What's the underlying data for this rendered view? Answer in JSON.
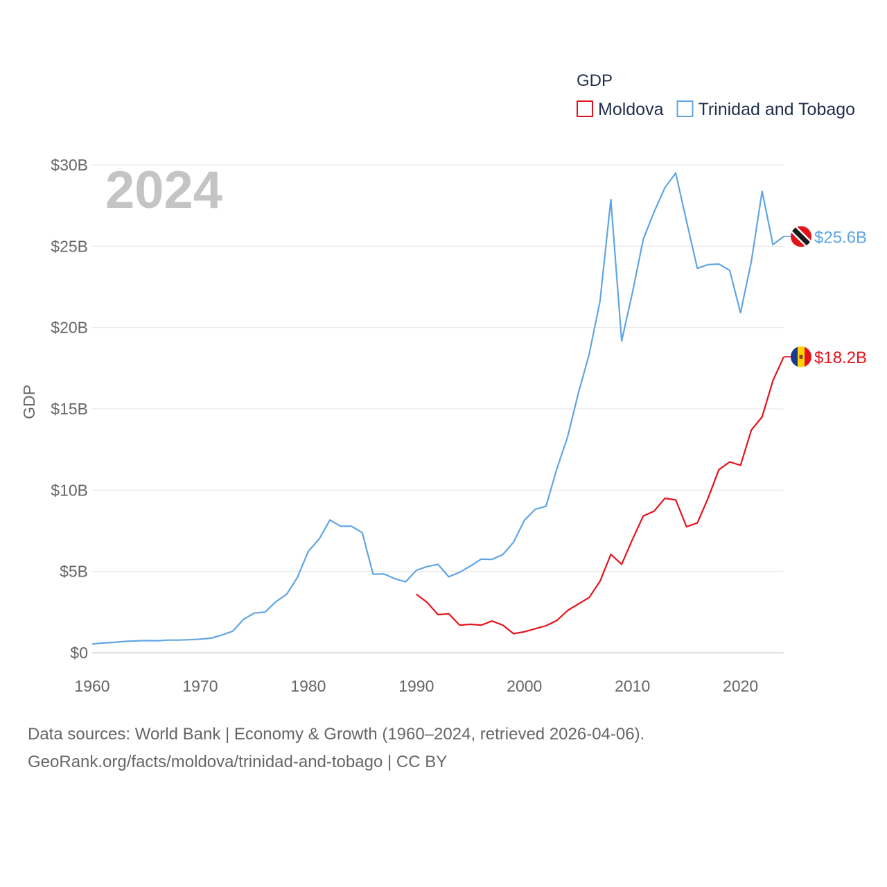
{
  "chart_data": {
    "type": "line",
    "title": "",
    "year_label": "2024",
    "legend_title": "GDP",
    "xlabel": "",
    "ylabel": "GDP",
    "xlim": [
      1960,
      2024
    ],
    "ylim": [
      0,
      30
    ],
    "y_unit": "billion USD",
    "x_ticks": [
      1960,
      1970,
      1980,
      1990,
      2000,
      2010,
      2020
    ],
    "x_tick_labels": [
      "1960",
      "1970",
      "1980",
      "1990",
      "2000",
      "2010",
      "2020"
    ],
    "y_ticks": [
      0,
      5,
      10,
      15,
      20,
      25,
      30
    ],
    "y_tick_labels": [
      "$0",
      "$5B",
      "$10B",
      "$15B",
      "$20B",
      "$25B",
      "$30B"
    ],
    "series": [
      {
        "name": "Moldova",
        "color": "#e3131b",
        "end_label": "$18.2B",
        "flag": "moldova",
        "x": [
          1990,
          1991,
          1992,
          1993,
          1994,
          1995,
          1996,
          1997,
          1998,
          1999,
          2000,
          2001,
          2002,
          2003,
          2004,
          2005,
          2006,
          2007,
          2008,
          2009,
          2010,
          2011,
          2012,
          2013,
          2014,
          2015,
          2016,
          2017,
          2018,
          2019,
          2020,
          2021,
          2022,
          2023,
          2024
        ],
        "values": [
          3.6,
          3.1,
          2.35,
          2.4,
          1.7,
          1.75,
          1.7,
          1.95,
          1.7,
          1.17,
          1.29,
          1.48,
          1.66,
          1.98,
          2.6,
          3.0,
          3.4,
          4.4,
          6.05,
          5.44,
          6.97,
          8.41,
          8.71,
          9.5,
          9.4,
          7.75,
          7.98,
          9.51,
          11.26,
          11.74,
          11.53,
          13.69,
          14.51,
          16.74,
          18.2
        ]
      },
      {
        "name": "Trinidad and Tobago",
        "color": "#5fa5e4",
        "end_label": "$25.6B",
        "flag": "trinidad-and-tobago",
        "x": [
          1960,
          1961,
          1962,
          1963,
          1964,
          1965,
          1966,
          1967,
          1968,
          1969,
          1970,
          1971,
          1972,
          1973,
          1974,
          1975,
          1976,
          1977,
          1978,
          1979,
          1980,
          1981,
          1982,
          1983,
          1984,
          1985,
          1986,
          1987,
          1988,
          1989,
          1990,
          1991,
          1992,
          1993,
          1994,
          1995,
          1996,
          1997,
          1998,
          1999,
          2000,
          2001,
          2002,
          2003,
          2004,
          2005,
          2006,
          2007,
          2008,
          2009,
          2010,
          2011,
          2012,
          2013,
          2014,
          2015,
          2016,
          2017,
          2018,
          2019,
          2020,
          2021,
          2022,
          2023,
          2024
        ],
        "values": [
          0.54,
          0.6,
          0.64,
          0.7,
          0.73,
          0.75,
          0.74,
          0.78,
          0.78,
          0.8,
          0.84,
          0.9,
          1.09,
          1.32,
          2.05,
          2.44,
          2.5,
          3.14,
          3.6,
          4.64,
          6.24,
          6.99,
          8.17,
          7.78,
          7.78,
          7.38,
          4.83,
          4.85,
          4.56,
          4.36,
          5.07,
          5.3,
          5.44,
          4.67,
          4.95,
          5.33,
          5.76,
          5.74,
          6.04,
          6.81,
          8.15,
          8.82,
          9.01,
          11.3,
          13.28,
          15.98,
          18.37,
          21.64,
          27.87,
          19.17,
          22.16,
          25.43,
          27.11,
          28.6,
          29.5,
          26.54,
          23.64,
          23.87,
          23.9,
          23.52,
          20.91,
          24.06,
          28.38,
          25.1,
          25.6
        ]
      }
    ]
  },
  "source": {
    "line1": "Data sources: World Bank | Economy & Growth (1960–2024, retrieved 2026-04-06).",
    "line2": "GeoRank.org/facts/moldova/trinidad-and-tobago | CC BY"
  }
}
